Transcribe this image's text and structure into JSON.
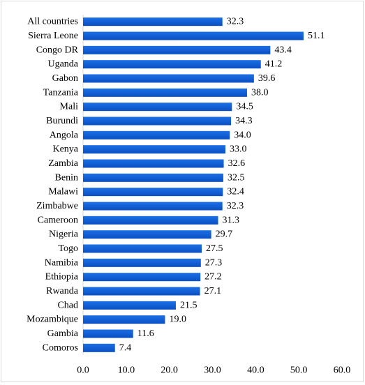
{
  "chart_data": {
    "type": "bar",
    "orientation": "horizontal",
    "categories": [
      "All countries",
      "Sierra Leone",
      "Congo DR",
      "Uganda",
      "Gabon",
      "Tanzania",
      "Mali",
      "Burundi",
      "Angola",
      "Kenya",
      "Zambia",
      "Benin",
      "Malawi",
      "Zimbabwe",
      "Cameroon",
      "Nigeria",
      "Togo",
      "Namibia",
      "Ethiopia",
      "Rwanda",
      "Chad",
      "Mozambique",
      "Gambia",
      "Comoros"
    ],
    "values": [
      32.3,
      51.1,
      43.4,
      41.2,
      39.6,
      38.0,
      34.5,
      34.3,
      34.0,
      33.0,
      32.6,
      32.5,
      32.4,
      32.3,
      31.3,
      29.7,
      27.5,
      27.3,
      27.2,
      27.1,
      21.5,
      19.0,
      11.6,
      7.4
    ],
    "value_labels": [
      "32.3",
      "51.1",
      "43.4",
      "41.2",
      "39.6",
      "38.0",
      "34.5",
      "34.3",
      "34.0",
      "33.0",
      "32.6",
      "32.5",
      "32.4",
      "32.3",
      "31.3",
      "29.7",
      "27.5",
      "27.3",
      "27.2",
      "27.1",
      "21.5",
      "19.0",
      "11.6",
      "7.4"
    ],
    "xlim": [
      0,
      60
    ],
    "xticks": [
      "0.0",
      "10.0",
      "20.0",
      "30.0",
      "40.0",
      "50.0",
      "60.0"
    ],
    "title": "",
    "xlabel": "",
    "ylabel": "",
    "grid": false,
    "legend": "none",
    "bar_color": "#0b5ed7"
  }
}
